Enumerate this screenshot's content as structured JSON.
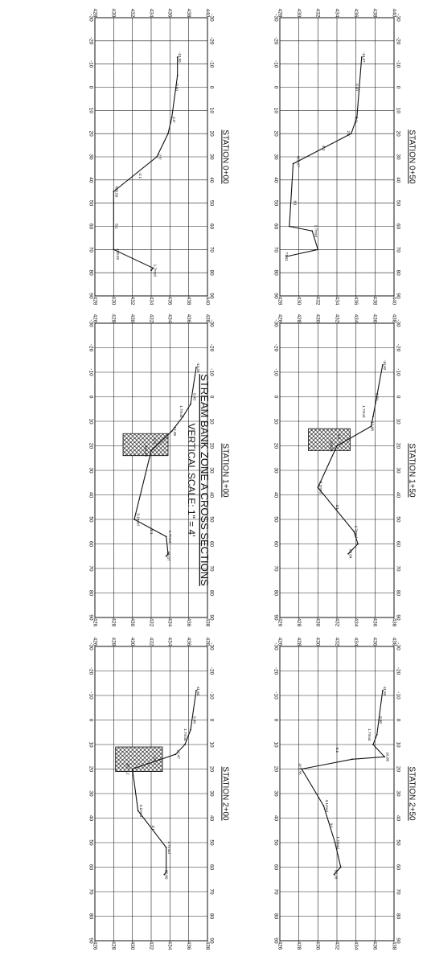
{
  "sheet": {
    "title": "STREAM BANK ZONE A CROSS SECTIONS",
    "scale": "VERTICAL SCALE: 1\" = 4'"
  },
  "panels": [
    {
      "id": "sta-0-50",
      "station": "STATION 0+50",
      "x_ticks": [
        -30,
        -20,
        -10,
        0,
        10,
        20,
        30,
        40,
        50,
        60,
        70,
        80,
        90
      ],
      "y_ticks": [
        428,
        430,
        432,
        434,
        436,
        438,
        440
      ],
      "y_range": [
        428,
        440
      ],
      "ground": [
        [
          -13,
          436.6
        ],
        [
          13,
          436.1
        ],
        [
          20,
          435.5
        ],
        [
          33,
          429.4
        ],
        [
          60,
          429.0
        ],
        [
          62,
          431.4
        ],
        [
          70,
          432.0
        ],
        [
          73,
          428.7
        ]
      ],
      "riprap": null,
      "labels": [
        {
          "x": -13,
          "y": 436.8,
          "text": "-13.37"
        },
        {
          "x": 0,
          "y": 436.1,
          "text": "0.40"
        },
        {
          "x": 14,
          "y": 436.0,
          "text": "2.0'"
        },
        {
          "x": 20,
          "y": 435.2,
          "text": "2.5'"
        },
        {
          "x": 26,
          "y": 432.6,
          "text": "-1:1"
        },
        {
          "x": 32,
          "y": 429.9,
          "text": "429.17"
        },
        {
          "x": 50,
          "y": 429.6,
          "text": "8:1"
        },
        {
          "x": 62,
          "y": 431.8,
          "text": "1.7mod"
        },
        {
          "x": 73,
          "y": 428.7,
          "text": "71.11"
        }
      ]
    },
    {
      "id": "sta-1-50",
      "station": "STATION 1+50",
      "x_ticks": [
        -30,
        -20,
        -10,
        0,
        10,
        20,
        30,
        40,
        50,
        60,
        70,
        80,
        90
      ],
      "y_ticks": [
        426,
        428,
        430,
        432,
        434,
        436,
        438
      ],
      "y_range": [
        426,
        438
      ],
      "ground": [
        [
          -13,
          436.8
        ],
        [
          8,
          435.8
        ],
        [
          12,
          435.6
        ],
        [
          20,
          432.0
        ],
        [
          37,
          430.0
        ],
        [
          55,
          433.8
        ],
        [
          60,
          434.2
        ],
        [
          64,
          433.2
        ]
      ],
      "riprap": [
        [
          13,
          429.0
        ],
        [
          22,
          429.0
        ],
        [
          22,
          433.4
        ],
        [
          13,
          433.4
        ]
      ],
      "labels": [
        {
          "x": -13,
          "y": 437.0,
          "text": "-13.62"
        },
        {
          "x": 0,
          "y": 436.2,
          "text": "0.50"
        },
        {
          "x": 6,
          "y": 434.8,
          "text": "1.7mod"
        },
        {
          "x": 12,
          "y": 435.7,
          "text": "12.08"
        },
        {
          "x": 16,
          "y": 432.2,
          "text": "-2:1"
        },
        {
          "x": 20,
          "y": 431.4,
          "text": "420.88"
        },
        {
          "x": 37,
          "y": 430.3,
          "text": "3.1mod"
        },
        {
          "x": 45,
          "y": 432.0,
          "text": "3:1"
        },
        {
          "x": 55,
          "y": 434.0,
          "text": "1.7mod"
        },
        {
          "x": 64,
          "y": 433.4,
          "text": "66.04"
        }
      ]
    },
    {
      "id": "sta-2-50",
      "station": "STATION 2+50",
      "x_ticks": [
        -30,
        -20,
        -10,
        0,
        10,
        20,
        30,
        40,
        50,
        60,
        70,
        80,
        90
      ],
      "y_ticks": [
        426,
        428,
        430,
        432,
        434,
        436,
        438
      ],
      "y_range": [
        426,
        438
      ],
      "ground": [
        [
          -12,
          436.8
        ],
        [
          6,
          436.2
        ],
        [
          10,
          435.8
        ],
        [
          15,
          437.0
        ],
        [
          16,
          433.6
        ],
        [
          20,
          428.3
        ],
        [
          35,
          430.6
        ],
        [
          50,
          431.8
        ],
        [
          60,
          432.4
        ],
        [
          63,
          431.7
        ]
      ],
      "riprap": null,
      "labels": [
        {
          "x": -12,
          "y": 437.0,
          "text": "-11.84"
        },
        {
          "x": 0,
          "y": 436.6,
          "text": "0.50"
        },
        {
          "x": 6,
          "y": 435.4,
          "text": "1.7mod"
        },
        {
          "x": 15,
          "y": 437.3,
          "text": "16.08"
        },
        {
          "x": 12,
          "y": 432.0,
          "text": "-0.1"
        },
        {
          "x": 20,
          "y": 428.1,
          "text": "428.35"
        },
        {
          "x": 35,
          "y": 430.9,
          "text": "3.1mod"
        },
        {
          "x": 43,
          "y": 431.4,
          "text": "3:1"
        },
        {
          "x": 50,
          "y": 432.1,
          "text": "1.7mod"
        },
        {
          "x": 63,
          "y": 431.9,
          "text": "62.28"
        }
      ]
    },
    {
      "id": "sta-0-00",
      "station": "STATION 0+00",
      "x_ticks": [
        -30,
        -20,
        -10,
        0,
        10,
        20,
        30,
        40,
        50,
        60,
        70,
        80,
        90
      ],
      "y_ticks": [
        428,
        430,
        432,
        434,
        436,
        438,
        440
      ],
      "y_range": [
        428,
        440
      ],
      "ground": [
        [
          -13,
          436.8
        ],
        [
          -5,
          436.8
        ],
        [
          13,
          436.2
        ],
        [
          20,
          435.8
        ],
        [
          30,
          434.6
        ],
        [
          45,
          430.0
        ],
        [
          70,
          430.0
        ],
        [
          78,
          434.2
        ],
        [
          79,
          434.0
        ]
      ],
      "riprap": null,
      "labels": [
        {
          "x": -13,
          "y": 437.0,
          "text": "-13.30"
        },
        {
          "x": 0,
          "y": 436.7,
          "text": "0.40"
        },
        {
          "x": 14,
          "y": 436.4,
          "text": "2.0'"
        },
        {
          "x": 30,
          "y": 434.9,
          "text": "2.5'"
        },
        {
          "x": 38,
          "y": 432.8,
          "text": "-2:1"
        },
        {
          "x": 45,
          "y": 430.3,
          "text": "430.50"
        },
        {
          "x": 60,
          "y": 430.3,
          "text": "8:1"
        },
        {
          "x": 72,
          "y": 430.4,
          "text": "429.92"
        },
        {
          "x": 79,
          "y": 434.4,
          "text": "1.7mod"
        }
      ]
    },
    {
      "id": "sta-1-00",
      "station": "STATION 1+00",
      "x_ticks": [
        -30,
        -20,
        -10,
        0,
        10,
        20,
        30,
        40,
        50,
        60,
        70,
        80,
        90
      ],
      "y_ticks": [
        426,
        428,
        430,
        432,
        434,
        436,
        438
      ],
      "y_range": [
        426,
        438
      ],
      "ground": [
        [
          -12,
          436.8
        ],
        [
          3,
          436.2
        ],
        [
          8,
          435.4
        ],
        [
          14,
          434.2
        ],
        [
          22,
          432.0
        ],
        [
          50,
          430.2
        ],
        [
          57,
          433.6
        ],
        [
          64,
          433.8
        ],
        [
          65,
          433.6
        ]
      ],
      "riprap": [
        [
          15,
          429.0
        ],
        [
          24,
          429.0
        ],
        [
          24,
          433.8
        ],
        [
          15,
          433.8
        ]
      ],
      "labels": [
        {
          "x": -12,
          "y": 437.0,
          "text": "-13.25"
        },
        {
          "x": 0,
          "y": 436.6,
          "text": "0.40"
        },
        {
          "x": 6,
          "y": 435.2,
          "text": "1.7mod"
        },
        {
          "x": 14,
          "y": 434.5,
          "text": "12.38"
        },
        {
          "x": 18,
          "y": 432.4,
          "text": "-2:1"
        },
        {
          "x": 22,
          "y": 431.4,
          "text": "420.98"
        },
        {
          "x": 50,
          "y": 430.6,
          "text": "3.1mod"
        },
        {
          "x": 55,
          "y": 432.0,
          "text": "3:1"
        },
        {
          "x": 57,
          "y": 434.0,
          "text": "1.7mod"
        },
        {
          "x": 65,
          "y": 433.8,
          "text": "65.07"
        }
      ]
    },
    {
      "id": "sta-2-00",
      "station": "STATION 2+00",
      "x_ticks": [
        -30,
        -20,
        -10,
        0,
        10,
        20,
        30,
        40,
        50,
        60,
        70,
        80,
        90
      ],
      "y_ticks": [
        426,
        428,
        430,
        432,
        434,
        436,
        438
      ],
      "y_range": [
        426,
        438
      ],
      "ground": [
        [
          -12,
          436.8
        ],
        [
          4,
          436.2
        ],
        [
          10,
          435.6
        ],
        [
          14,
          434.6
        ],
        [
          20,
          430.0
        ],
        [
          37,
          430.6
        ],
        [
          52,
          433.6
        ],
        [
          62,
          433.6
        ],
        [
          63,
          433.4
        ]
      ],
      "riprap": [
        [
          11,
          428.2
        ],
        [
          21,
          428.2
        ],
        [
          21,
          433.2
        ],
        [
          11,
          433.2
        ]
      ],
      "labels": [
        {
          "x": -12,
          "y": 437.0,
          "text": "-11.60"
        },
        {
          "x": 0,
          "y": 436.6,
          "text": "0.40"
        },
        {
          "x": 6,
          "y": 435.6,
          "text": "1.7mod"
        },
        {
          "x": 14,
          "y": 434.9,
          "text": "12.47"
        },
        {
          "x": 16,
          "y": 432.4,
          "text": "-2:1"
        },
        {
          "x": 20,
          "y": 429.5,
          "text": "427.12"
        },
        {
          "x": 37,
          "y": 430.9,
          "text": "3.1mod"
        },
        {
          "x": 44,
          "y": 432.2,
          "text": "3:1"
        },
        {
          "x": 52,
          "y": 433.9,
          "text": "1.7mod"
        },
        {
          "x": 63,
          "y": 433.6,
          "text": "62.80"
        }
      ]
    }
  ]
}
